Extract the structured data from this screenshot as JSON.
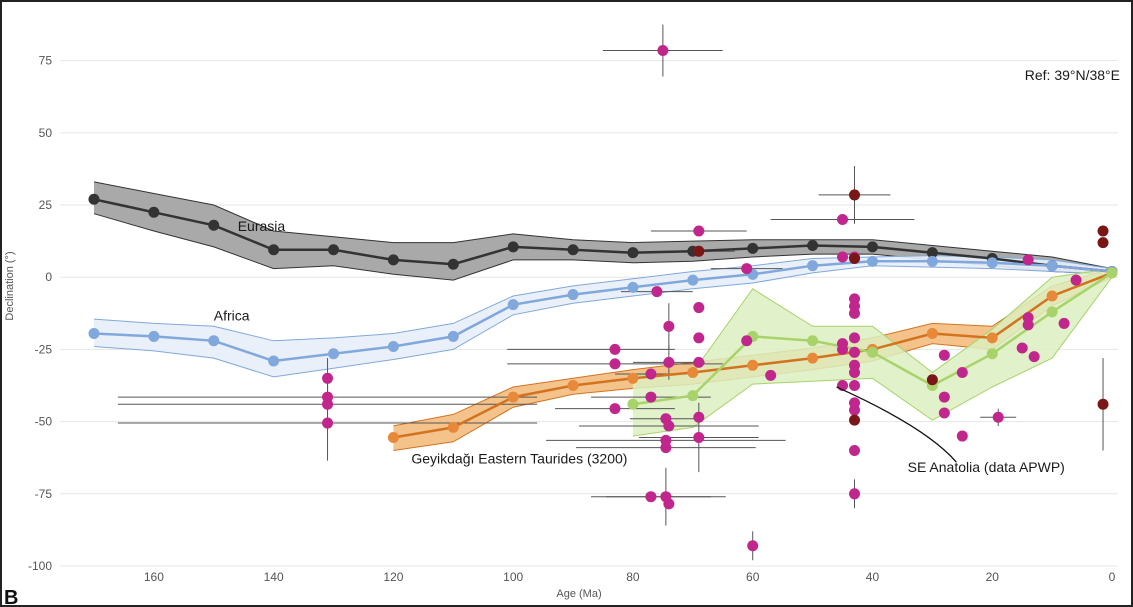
{
  "chart_data": {
    "type": "line",
    "panel_label": "B",
    "reference_label": "Ref: 39°N/38°E",
    "xlabel": "Age (Ma)",
    "ylabel": "Declination (°)",
    "xlim": [
      171,
      -1
    ],
    "ylim": [
      -100,
      87
    ],
    "x_ticks": [
      160,
      140,
      120,
      100,
      80,
      60,
      40,
      20,
      0
    ],
    "y_ticks": [
      75,
      50,
      25,
      0,
      -25,
      -50,
      -75,
      -100
    ],
    "grid": "horizontal",
    "colors": {
      "eurasia": "#333333",
      "eurasia_band": "#9a9a9a",
      "africa": "#80a8dc",
      "africa_band": "#e8eef8",
      "geyikdagi": "#e8893a",
      "geyikdagi_band": "#f1b877",
      "se_anatolia": "#a8d36a",
      "se_anatolia_band": "#dcefc0",
      "data_points": "#c0268c",
      "data_points_dark": "#7a1616",
      "error_bars": "#555555",
      "gridline": "#e6e6e6"
    },
    "series": [
      {
        "name": "Eurasia",
        "x": [
          170,
          160,
          150,
          140,
          130,
          120,
          110,
          100,
          90,
          80,
          70,
          60,
          50,
          40,
          30,
          20,
          10,
          0
        ],
        "y": [
          27,
          22.5,
          18,
          9.5,
          9.5,
          6,
          4.5,
          10.5,
          9.5,
          8.5,
          9,
          10,
          11,
          10.5,
          8.5,
          6.5,
          4,
          2
        ],
        "upper": [
          33,
          29,
          25,
          16,
          14,
          12,
          12,
          15,
          13,
          12,
          12.5,
          13,
          13,
          13,
          11,
          9,
          7,
          3
        ],
        "lower": [
          22,
          16,
          10.5,
          3,
          4,
          1,
          -1,
          6,
          6,
          5,
          5.5,
          7,
          8,
          8,
          6,
          4,
          2,
          1
        ]
      },
      {
        "name": "Africa",
        "x": [
          170,
          160,
          150,
          140,
          130,
          120,
          110,
          100,
          90,
          80,
          70,
          60,
          50,
          40,
          30,
          20,
          10,
          0
        ],
        "y": [
          -19.5,
          -20.5,
          -22,
          -29,
          -26.5,
          -24,
          -20.5,
          -9.5,
          -6,
          -3.5,
          -1,
          1,
          4,
          5.5,
          5.5,
          5,
          4,
          2
        ],
        "upper": [
          -14.5,
          -16,
          -17,
          -22,
          -21,
          -19.5,
          -16,
          -6.5,
          -3,
          -0.5,
          2,
          4,
          6.5,
          7,
          7.5,
          7,
          6,
          3
        ],
        "lower": [
          -24,
          -25.5,
          -28,
          -34.5,
          -31.5,
          -28.5,
          -25,
          -13,
          -9,
          -6.5,
          -4,
          -2,
          1.5,
          4,
          3.5,
          3,
          2,
          1
        ]
      },
      {
        "name": "Geyikdağı Eastern Taurides (3200)",
        "x": [
          120,
          110,
          100,
          90,
          80,
          70,
          60,
          50,
          40,
          30,
          20,
          10,
          0
        ],
        "y": [
          -55.5,
          -52,
          -41.5,
          -37.5,
          -35,
          -33,
          -30.5,
          -28,
          -25,
          -19.5,
          -21,
          -6.5,
          1.5
        ],
        "upper": [
          -51.5,
          -47.5,
          -38,
          -35,
          -32,
          -29.5,
          -27,
          -24.5,
          -21,
          -16,
          -17,
          -3,
          3
        ],
        "lower": [
          -60,
          -57,
          -45,
          -40.5,
          -38.5,
          -37,
          -34.5,
          -32,
          -29,
          -23,
          -25,
          -10,
          0
        ]
      },
      {
        "name": "SE Anatolia (data APWP)",
        "x": [
          80,
          70,
          60,
          50,
          40,
          30,
          20,
          10,
          0
        ],
        "y": [
          -44,
          -41,
          -20.5,
          -22,
          -26,
          -37.5,
          -26.5,
          -12,
          1.5
        ],
        "upper": [
          -34,
          -33,
          -4,
          -17,
          -17,
          -33,
          -18,
          0,
          3
        ],
        "lower": [
          -55,
          -52,
          -37,
          -36,
          -35,
          -49.5,
          -38,
          -28,
          0
        ]
      }
    ],
    "points": [
      {
        "x": 131,
        "y": -35,
        "ex_lo": 0,
        "ex_hi": 0,
        "ey": 7
      },
      {
        "x": 131,
        "y": -41.5,
        "ex_lo": 35,
        "ex_hi": 35,
        "ey": 0
      },
      {
        "x": 131,
        "y": -44,
        "ex_lo": 35,
        "ex_hi": 35,
        "ey": 8
      },
      {
        "x": 131,
        "y": -50.5,
        "ex_lo": 35,
        "ex_hi": 35,
        "ey": 13
      },
      {
        "x": 83,
        "y": -25,
        "ex_lo": 18,
        "ex_hi": 10,
        "ey": 0
      },
      {
        "x": 83,
        "y": -30,
        "ex_lo": 18,
        "ex_hi": 18,
        "ey": 0
      },
      {
        "x": 83,
        "y": -45.5,
        "ex_lo": 10,
        "ex_hi": 10,
        "ey": 0
      },
      {
        "x": 77,
        "y": -33.5,
        "ex_lo": 6,
        "ex_hi": 6,
        "ey": 0
      },
      {
        "x": 77,
        "y": -41.5,
        "ex_lo": 10,
        "ex_hi": 10,
        "ey": 0
      },
      {
        "x": 77,
        "y": -76,
        "ex_lo": 10,
        "ex_hi": 10,
        "ey": 0
      },
      {
        "x": 76,
        "y": -5,
        "ex_lo": 6,
        "ex_hi": 6,
        "ey": 0
      },
      {
        "x": 75,
        "y": 78.5,
        "ex_lo": 10,
        "ex_hi": 10,
        "ey": 9
      },
      {
        "x": 74.5,
        "y": -49,
        "ex_lo": 6,
        "ex_hi": 6,
        "ey": 0
      },
      {
        "x": 74.5,
        "y": -56.5,
        "ex_lo": 20,
        "ex_hi": 20,
        "ey": 0
      },
      {
        "x": 74.5,
        "y": -59,
        "ex_lo": 15,
        "ex_hi": 15,
        "ey": 0
      },
      {
        "x": 74.5,
        "y": -76,
        "ex_lo": 10,
        "ex_hi": 10,
        "ey": 10
      },
      {
        "x": 74,
        "y": -17,
        "ex_lo": 0,
        "ex_hi": 0,
        "ey": 8
      },
      {
        "x": 74,
        "y": -29.5,
        "ex_lo": 6,
        "ex_hi": 6,
        "ey": 6
      },
      {
        "x": 74,
        "y": -51.5,
        "ex_lo": 15,
        "ex_hi": 15,
        "ey": 0
      },
      {
        "x": 74,
        "y": -78.5,
        "ex_lo": 0,
        "ex_hi": 0,
        "ey": 0
      },
      {
        "x": 69,
        "y": 9,
        "ex_lo": 6,
        "ex_hi": 6,
        "ey": 0
      },
      {
        "x": 69,
        "y": 16,
        "ex_lo": 8,
        "ex_hi": 8,
        "ey": 0
      },
      {
        "x": 69,
        "y": -10.5,
        "ex_lo": 0,
        "ex_hi": 0,
        "ey": 0
      },
      {
        "x": 69,
        "y": -21,
        "ex_lo": 0,
        "ex_hi": 0,
        "ey": 0
      },
      {
        "x": 69,
        "y": -29.5,
        "ex_lo": 0,
        "ex_hi": 0,
        "ey": 0
      },
      {
        "x": 69,
        "y": -48.5,
        "ex_lo": 0,
        "ex_hi": 0,
        "ey": 0
      },
      {
        "x": 69,
        "y": -55.5,
        "ex_lo": 10,
        "ex_hi": 10,
        "ey": 12
      },
      {
        "x": 61,
        "y": 3,
        "ex_lo": 6,
        "ex_hi": 6,
        "ey": 0
      },
      {
        "x": 61,
        "y": -22,
        "ex_lo": 0,
        "ex_hi": 0,
        "ey": 0
      },
      {
        "x": 60,
        "y": -93,
        "ex_lo": 0,
        "ex_hi": 0,
        "ey": 5
      },
      {
        "x": 57,
        "y": -34,
        "ex_lo": 0,
        "ex_hi": 0,
        "ey": 0
      },
      {
        "x": 45,
        "y": 20,
        "ex_lo": 12,
        "ex_hi": 12,
        "ey": 0
      },
      {
        "x": 45,
        "y": 7,
        "ex_lo": 0,
        "ex_hi": 0,
        "ey": 0
      },
      {
        "x": 45,
        "y": -23,
        "ex_lo": 0,
        "ex_hi": 0,
        "ey": 0
      },
      {
        "x": 45,
        "y": -25,
        "ex_lo": 0,
        "ex_hi": 0,
        "ey": 0
      },
      {
        "x": 45,
        "y": -37.5,
        "ex_lo": 0,
        "ex_hi": 0,
        "ey": 0
      },
      {
        "x": 43,
        "y": 7,
        "ex_lo": 0,
        "ex_hi": 0,
        "ey": 0
      },
      {
        "x": 43,
        "y": -7.5,
        "ex_lo": 0,
        "ex_hi": 0,
        "ey": 0
      },
      {
        "x": 43,
        "y": -10,
        "ex_lo": 0,
        "ex_hi": 0,
        "ey": 0
      },
      {
        "x": 43,
        "y": -12.5,
        "ex_lo": 0,
        "ex_hi": 0,
        "ey": 0
      },
      {
        "x": 43,
        "y": -21,
        "ex_lo": 0,
        "ex_hi": 0,
        "ey": 0
      },
      {
        "x": 43,
        "y": -26,
        "ex_lo": 0,
        "ex_hi": 0,
        "ey": 0
      },
      {
        "x": 43,
        "y": -30.5,
        "ex_lo": 0,
        "ex_hi": 0,
        "ey": 0
      },
      {
        "x": 43,
        "y": -33,
        "ex_lo": 0,
        "ex_hi": 0,
        "ey": 0
      },
      {
        "x": 43,
        "y": -37.5,
        "ex_lo": 0,
        "ex_hi": 0,
        "ey": 0
      },
      {
        "x": 43,
        "y": -43.5,
        "ex_lo": 0,
        "ex_hi": 0,
        "ey": 0
      },
      {
        "x": 43,
        "y": -46,
        "ex_lo": 0,
        "ex_hi": 0,
        "ey": 0
      },
      {
        "x": 43,
        "y": -60,
        "ex_lo": 0,
        "ex_hi": 0,
        "ey": 0
      },
      {
        "x": 43,
        "y": -75,
        "ex_lo": 0,
        "ex_hi": 0,
        "ey": 5
      },
      {
        "x": 28,
        "y": -27,
        "ex_lo": 0,
        "ex_hi": 0,
        "ey": 0
      },
      {
        "x": 28,
        "y": -41.5,
        "ex_lo": 0,
        "ex_hi": 0,
        "ey": 0
      },
      {
        "x": 28,
        "y": -47,
        "ex_lo": 0,
        "ex_hi": 0,
        "ey": 0
      },
      {
        "x": 25,
        "y": -33,
        "ex_lo": 0,
        "ex_hi": 0,
        "ey": 0
      },
      {
        "x": 25,
        "y": -55,
        "ex_lo": 0,
        "ex_hi": 0,
        "ey": 0
      },
      {
        "x": 19,
        "y": -48.5,
        "ex_lo": 3,
        "ex_hi": 3,
        "ey": 3
      },
      {
        "x": 15,
        "y": -24.5,
        "ex_lo": 0,
        "ex_hi": 0,
        "ey": 0
      },
      {
        "x": 14,
        "y": 6,
        "ex_lo": 0,
        "ex_hi": 0,
        "ey": 0
      },
      {
        "x": 14,
        "y": -14,
        "ex_lo": 0,
        "ex_hi": 0,
        "ey": 0
      },
      {
        "x": 14,
        "y": -16.5,
        "ex_lo": 0,
        "ex_hi": 0,
        "ey": 0
      },
      {
        "x": 13,
        "y": -27.5,
        "ex_lo": 0,
        "ex_hi": 0,
        "ey": 0
      },
      {
        "x": 8,
        "y": -16,
        "ex_lo": 0,
        "ex_hi": 0,
        "ey": 0
      },
      {
        "x": 6,
        "y": -1,
        "ex_lo": 0,
        "ex_hi": 0,
        "ey": 0
      }
    ],
    "points_dark": [
      {
        "x": 69,
        "y": 9,
        "ex_lo": 0,
        "ex_hi": 0,
        "ey": 0
      },
      {
        "x": 43,
        "y": 28.5,
        "ex_lo": 6,
        "ex_hi": 6,
        "ey": 10
      },
      {
        "x": 43,
        "y": 6.5,
        "ex_lo": 0,
        "ex_hi": 0,
        "ey": 0
      },
      {
        "x": 43,
        "y": -49.5,
        "ex_lo": 0,
        "ex_hi": 0,
        "ey": 0
      },
      {
        "x": 30,
        "y": -35.5,
        "ex_lo": 0,
        "ex_hi": 0,
        "ey": 0
      },
      {
        "x": 1.5,
        "y": 16,
        "ex_lo": 0,
        "ex_hi": 0,
        "ey": 0
      },
      {
        "x": 1.5,
        "y": 12,
        "ex_lo": 0,
        "ex_hi": 0,
        "ey": 0
      },
      {
        "x": 1.5,
        "y": -44,
        "ex_lo": 0,
        "ex_hi": 0,
        "ey": 16
      }
    ],
    "annotations": [
      {
        "text": "Eurasia",
        "x": 146,
        "y": 16,
        "ref": "eurasia"
      },
      {
        "text": "Africa",
        "x": 150,
        "y": -15,
        "ref": "africa"
      },
      {
        "text": "Geyikdağı Eastern Taurides (3200)",
        "x": 117,
        "y": -64.5,
        "ref": "geyikdagi"
      },
      {
        "text": "SE Anatolia (data APWP)",
        "x": 21,
        "y": -67.5,
        "ref": "se_anatolia"
      }
    ]
  }
}
